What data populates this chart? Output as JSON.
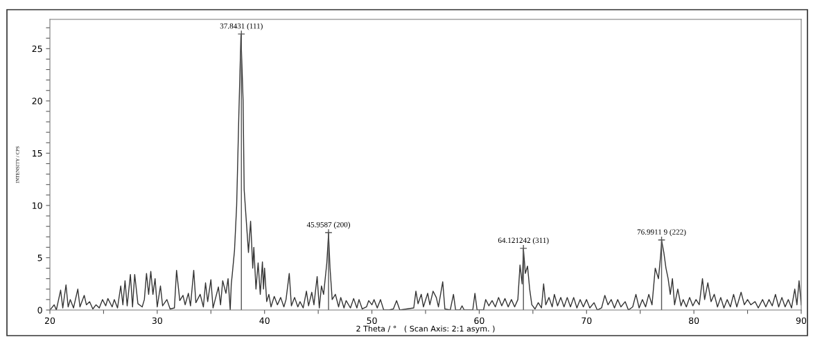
{
  "chart_data": {
    "type": "line",
    "xlabel": "2 Theta / °   ( Scan Axis: 2:1 asym. )",
    "ylabel": "INTENSITY / CPS",
    "series": [
      {
        "color": "#333333",
        "x": [
          20.0,
          20.4,
          20.6,
          21.0,
          21.2,
          21.5,
          21.7,
          21.9,
          22.2,
          22.6,
          22.8,
          23.2,
          23.4,
          23.7,
          24.0,
          24.3,
          24.6,
          24.9,
          25.2,
          25.4,
          25.8,
          26.0,
          26.3,
          26.6,
          26.8,
          27.0,
          27.2,
          27.5,
          27.7,
          27.9,
          28.2,
          28.6,
          28.8,
          29.0,
          29.2,
          29.4,
          29.6,
          29.8,
          30.0,
          30.3,
          30.5,
          30.9,
          31.2,
          31.6,
          31.8,
          32.1,
          32.4,
          32.6,
          32.9,
          33.1,
          33.4,
          33.6,
          34.0,
          34.3,
          34.5,
          34.7,
          35.0,
          35.2,
          35.4,
          35.7,
          35.9,
          36.1,
          36.4,
          36.6,
          36.8,
          36.9,
          37.0,
          37.2,
          37.4,
          37.6,
          37.8,
          38.0,
          38.1,
          38.3,
          38.5,
          38.7,
          38.9,
          39.0,
          39.2,
          39.4,
          39.6,
          39.8,
          39.9,
          40.0,
          40.2,
          40.4,
          40.6,
          40.9,
          41.2,
          41.5,
          41.8,
          42.0,
          42.3,
          42.5,
          42.8,
          43.1,
          43.3,
          43.6,
          43.9,
          44.1,
          44.4,
          44.6,
          44.9,
          45.1,
          45.3,
          45.5,
          45.8,
          45.96,
          46.1,
          46.3,
          46.6,
          46.9,
          47.1,
          47.4,
          47.6,
          48.0,
          48.3,
          48.6,
          48.8,
          49.1,
          49.5,
          49.7,
          50.0,
          50.2,
          50.5,
          50.8,
          51.1,
          51.6,
          52.0,
          52.3,
          52.6,
          53.9,
          54.1,
          54.3,
          54.6,
          54.8,
          55.2,
          55.4,
          55.7,
          56.0,
          56.2,
          56.6,
          56.8,
          57.3,
          57.6,
          57.8,
          58.2,
          58.4,
          58.6,
          59.4,
          59.6,
          59.8,
          60.4,
          60.6,
          60.9,
          61.2,
          61.5,
          61.8,
          62.1,
          62.4,
          62.7,
          63.0,
          63.3,
          63.6,
          63.8,
          64.0,
          64.12,
          64.3,
          64.5,
          64.7,
          64.9,
          65.2,
          65.5,
          65.8,
          66.0,
          66.2,
          66.5,
          66.8,
          67.0,
          67.3,
          67.6,
          67.9,
          68.2,
          68.5,
          68.8,
          69.1,
          69.4,
          69.7,
          70.0,
          70.3,
          70.7,
          71.0,
          71.4,
          71.7,
          72.0,
          72.3,
          72.6,
          72.9,
          73.2,
          73.6,
          73.9,
          74.3,
          74.6,
          74.9,
          75.2,
          75.5,
          75.8,
          76.1,
          76.4,
          76.7,
          76.9,
          77.0,
          77.2,
          77.4,
          77.6,
          77.8,
          78.0,
          78.2,
          78.5,
          78.8,
          79.0,
          79.3,
          79.6,
          79.9,
          80.2,
          80.5,
          80.8,
          81.0,
          81.3,
          81.6,
          81.9,
          82.2,
          82.5,
          82.8,
          83.1,
          83.4,
          83.7,
          84.0,
          84.4,
          84.7,
          85.0,
          85.3,
          85.7,
          86.0,
          86.4,
          86.7,
          87.0,
          87.3,
          87.6,
          87.9,
          88.2,
          88.5,
          88.8,
          89.1,
          89.4,
          89.6,
          89.8,
          90.0
        ],
        "values": [
          0,
          0.5,
          0,
          1.9,
          0.2,
          2.4,
          0.3,
          1.0,
          0.2,
          2.0,
          0.3,
          1.4,
          0.5,
          0.8,
          0.1,
          0.5,
          0.2,
          1.0,
          0.4,
          1.1,
          0.3,
          1.0,
          0.2,
          2.3,
          0.5,
          2.8,
          0.4,
          3.4,
          0.3,
          3.4,
          0.6,
          0.3,
          1.0,
          3.5,
          1.5,
          3.7,
          1.5,
          3.0,
          0.3,
          2.3,
          0.4,
          1.0,
          0.1,
          0.2,
          3.8,
          0.9,
          1.4,
          0.5,
          1.6,
          0.4,
          3.8,
          0.7,
          1.5,
          0.3,
          2.6,
          0.8,
          2.9,
          0.2,
          1.0,
          2.2,
          0.5,
          2.8,
          1.6,
          3.0,
          0.0,
          2.5,
          3.5,
          5.7,
          10.0,
          18.5,
          26.3,
          20.0,
          11.5,
          8.5,
          5.5,
          8.5,
          4.0,
          6.0,
          2.0,
          4.5,
          1.5,
          4.6,
          2.0,
          4.0,
          0.8,
          1.5,
          0.3,
          1.3,
          0.5,
          1.2,
          0.3,
          1.0,
          3.5,
          0.4,
          1.2,
          0.3,
          0.8,
          0.2,
          1.8,
          0.4,
          1.7,
          0.5,
          3.2,
          0.2,
          2.3,
          1.5,
          4.5,
          7.3,
          4.0,
          1.0,
          1.5,
          0.3,
          1.2,
          0.2,
          0.9,
          0.2,
          1.1,
          0.2,
          1.0,
          0.1,
          0.3,
          0.9,
          0.5,
          1.0,
          0.2,
          1.0,
          0.0,
          0.0,
          0.1,
          0.9,
          0.0,
          0.2,
          1.8,
          0.6,
          1.5,
          0.3,
          1.6,
          0.5,
          1.8,
          1.2,
          0.3,
          2.7,
          0.1,
          0.0,
          1.5,
          0.0,
          0.0,
          0.4,
          0.0,
          0.0,
          1.6,
          0.0,
          0.0,
          1.0,
          0.4,
          0.9,
          0.3,
          1.2,
          0.4,
          1.1,
          0.3,
          1.0,
          0.3,
          1.0,
          4.3,
          2.5,
          5.8,
          3.5,
          4.2,
          2.0,
          0.5,
          0.1,
          0.7,
          0.2,
          2.5,
          0.5,
          1.2,
          0.3,
          1.5,
          0.4,
          1.2,
          0.3,
          1.2,
          0.3,
          1.2,
          0.2,
          1.0,
          0.3,
          1.0,
          0.2,
          0.7,
          0.0,
          0.2,
          1.4,
          0.5,
          1.0,
          0.2,
          1.0,
          0.3,
          0.8,
          0.0,
          0.3,
          1.5,
          0.2,
          1.0,
          0.3,
          1.5,
          0.5,
          4.0,
          3.0,
          5.2,
          6.6,
          5.5,
          4.0,
          3.0,
          1.5,
          3.0,
          0.5,
          2.0,
          0.4,
          1.0,
          0.3,
          1.2,
          0.4,
          1.0,
          0.5,
          3.0,
          1.0,
          2.6,
          0.8,
          1.5,
          0.3,
          1.2,
          0.2,
          1.0,
          0.3,
          1.5,
          0.3,
          1.7,
          0.5,
          1.0,
          0.5,
          0.8,
          0.2,
          1.0,
          0.3,
          1.0,
          0.4,
          1.5,
          0.3,
          1.2,
          0.3,
          1.0,
          0.2,
          2.0,
          0.5,
          2.8,
          0.5
        ]
      },
      {
        "type": "lollipop",
        "color": "#555555",
        "marker": "cross",
        "x": [
          37.84,
          45.96,
          64.12,
          76.99
        ],
        "values": [
          26.4,
          7.4,
          5.9,
          6.7
        ]
      }
    ],
    "xlim": [
      20,
      90
    ],
    "xticks": [
      20,
      {
        "value": 25,
        "label": null
      },
      30,
      {
        "value": 35,
        "label": null
      },
      40,
      {
        "value": 45,
        "label": null
      },
      50,
      {
        "value": 55,
        "label": null
      },
      60,
      {
        "value": 65,
        "label": null
      },
      70,
      {
        "value": 75,
        "label": null
      },
      80,
      {
        "value": 85,
        "label": null
      },
      90
    ],
    "ylim": [
      0,
      27.8
    ],
    "yticks": [
      0,
      {
        "value": 1,
        "label": null
      },
      {
        "value": 2,
        "label": null
      },
      {
        "value": 3,
        "label": null
      },
      {
        "value": 4,
        "label": null
      },
      5,
      {
        "value": 6,
        "label": null
      },
      {
        "value": 7,
        "label": null
      },
      {
        "value": 8,
        "label": null
      },
      {
        "value": 9,
        "label": null
      },
      10,
      {
        "value": 11,
        "label": null
      },
      {
        "value": 12,
        "label": null
      },
      {
        "value": 13,
        "label": null
      },
      {
        "value": 14,
        "label": null
      },
      15,
      {
        "value": 16,
        "label": null
      },
      {
        "value": 17,
        "label": null
      },
      {
        "value": 18,
        "label": null
      },
      {
        "value": 19,
        "label": null
      },
      20,
      {
        "value": 21,
        "label": null
      },
      {
        "value": 22,
        "label": null
      },
      {
        "value": 23,
        "label": null
      },
      {
        "value": 24,
        "label": null
      },
      25,
      {
        "value": 26,
        "label": null
      },
      {
        "value": 27,
        "label": null
      }
    ],
    "annotations": [
      {
        "text": "37.8431 (111)",
        "x": 37.84,
        "y": 26.4
      },
      {
        "text": "45.9587 (200)",
        "x": 45.96,
        "y": 7.4
      },
      {
        "text": "64.121242 (311)",
        "x": 64.12,
        "y": 5.9
      },
      {
        "text": "76.9911 9 (222)",
        "x": 76.99,
        "y": 6.7
      }
    ],
    "grid": false,
    "legend": false,
    "marker": "none",
    "line_style": "solid"
  }
}
